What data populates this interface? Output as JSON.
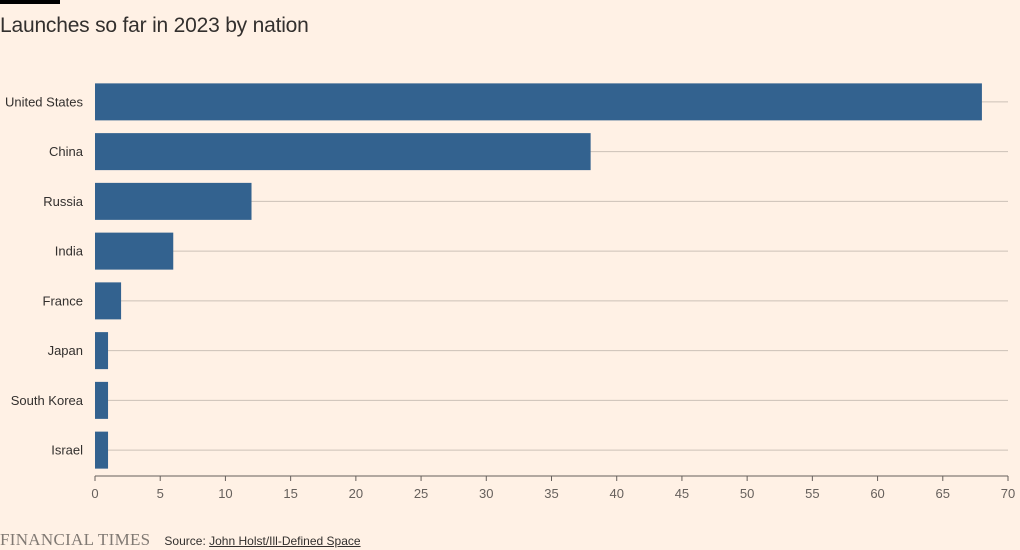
{
  "chart_data": {
    "type": "bar",
    "orientation": "horizontal",
    "title": "Launches so far in 2023 by nation",
    "categories": [
      "United States",
      "China",
      "Russia",
      "India",
      "France",
      "Japan",
      "South Korea",
      "Israel"
    ],
    "values": [
      68,
      38,
      12,
      6,
      2,
      1,
      1,
      1
    ],
    "xlim": [
      0,
      70
    ],
    "xticks": [
      0,
      5,
      10,
      15,
      20,
      25,
      30,
      35,
      40,
      45,
      50,
      55,
      60,
      65,
      70
    ],
    "grid": "horizontal row lines",
    "colors": {
      "bar": "#33628f",
      "grid": "#ccc1b7",
      "axis": "#66605c",
      "background": "#fff1e5"
    }
  },
  "footer": {
    "brand": "FINANCIAL TIMES",
    "source_prefix": "Source:",
    "source_link": "John Holst/Ill-Defined Space"
  }
}
